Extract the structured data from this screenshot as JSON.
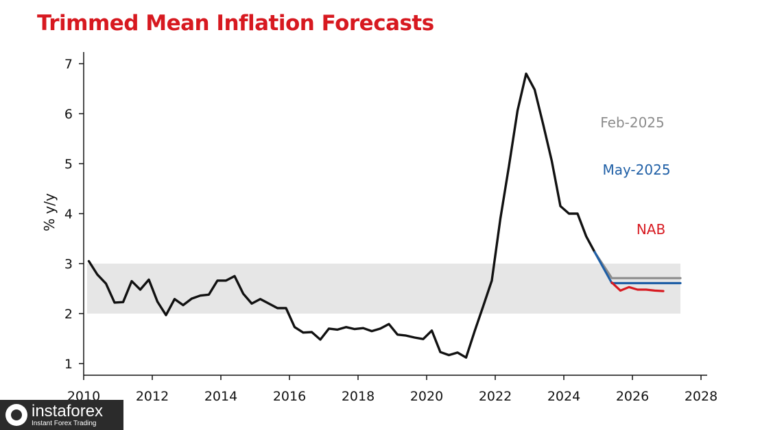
{
  "title": "Trimmed Mean Inflation Forecasts",
  "watermark": {
    "name": "instaforex",
    "tagline": "Instant Forex Trading"
  },
  "colors": {
    "title": "#d71920",
    "actual": "#111111",
    "feb": "#8c8c8c",
    "may": "#1f5fa6",
    "nab": "#d71920",
    "band": "#e6e6e6",
    "axis": "#111111"
  },
  "chart_data": {
    "type": "line",
    "title": "Trimmed Mean Inflation Forecasts",
    "xlabel": "",
    "ylabel": "% y/y",
    "xlim": [
      2010,
      2028.2
    ],
    "ylim": [
      0.8,
      7.25
    ],
    "xticks": [
      2010,
      2012,
      2014,
      2016,
      2018,
      2020,
      2022,
      2024,
      2026,
      2028
    ],
    "yticks": [
      1,
      2,
      3,
      4,
      5,
      6,
      7
    ],
    "grid": false,
    "legend": "none",
    "target_band": {
      "from": 2,
      "to": 3,
      "x_start": 2010.1,
      "x_end": 2027.4
    },
    "series": [
      {
        "key": "actual",
        "color": "#111111",
        "x": [
          2010.15,
          2010.4,
          2010.65,
          2010.9,
          2011.15,
          2011.4,
          2011.65,
          2011.9,
          2012.15,
          2012.4,
          2012.65,
          2012.9,
          2013.15,
          2013.4,
          2013.65,
          2013.9,
          2014.15,
          2014.4,
          2014.65,
          2014.9,
          2015.15,
          2015.4,
          2015.65,
          2015.9,
          2016.15,
          2016.4,
          2016.65,
          2016.9,
          2017.15,
          2017.4,
          2017.65,
          2017.9,
          2018.15,
          2018.4,
          2018.65,
          2018.9,
          2019.15,
          2019.4,
          2019.65,
          2019.9,
          2020.15,
          2020.4,
          2020.65,
          2020.9,
          2021.15,
          2021.4,
          2021.65,
          2021.9,
          2022.15,
          2022.4,
          2022.65,
          2022.9,
          2023.15,
          2023.4,
          2023.65,
          2023.9,
          2024.15,
          2024.4,
          2024.65,
          2024.9
        ],
        "values": [
          3.05,
          2.78,
          2.6,
          2.22,
          2.23,
          2.65,
          2.48,
          2.68,
          2.24,
          1.97,
          2.29,
          2.17,
          2.3,
          2.36,
          2.38,
          2.66,
          2.66,
          2.75,
          2.4,
          2.2,
          2.29,
          2.2,
          2.11,
          2.11,
          1.73,
          1.62,
          1.63,
          1.48,
          1.7,
          1.68,
          1.73,
          1.69,
          1.71,
          1.65,
          1.7,
          1.79,
          1.58,
          1.56,
          1.52,
          1.49,
          1.66,
          1.23,
          1.17,
          1.22,
          1.12,
          1.65,
          2.15,
          2.66,
          3.9,
          4.95,
          6.06,
          6.8,
          6.48,
          5.78,
          5.05,
          4.15,
          4.0,
          4.0,
          3.55,
          3.23
        ]
      },
      {
        "key": "feb",
        "name": "Feb-2025",
        "color": "#8c8c8c",
        "x": [
          2024.9,
          2025.4,
          2027.4
        ],
        "values": [
          3.23,
          2.71,
          2.71
        ]
      },
      {
        "key": "may",
        "name": "May-2025",
        "color": "#1f5fa6",
        "x": [
          2024.9,
          2025.4,
          2027.4
        ],
        "values": [
          3.23,
          2.61,
          2.61
        ]
      },
      {
        "key": "nab",
        "name": "NAB",
        "color": "#d71920",
        "x": [
          2025.4,
          2025.65,
          2025.9,
          2026.15,
          2026.4,
          2026.65,
          2026.9
        ],
        "values": [
          2.62,
          2.46,
          2.53,
          2.48,
          2.48,
          2.46,
          2.45
        ]
      }
    ]
  }
}
